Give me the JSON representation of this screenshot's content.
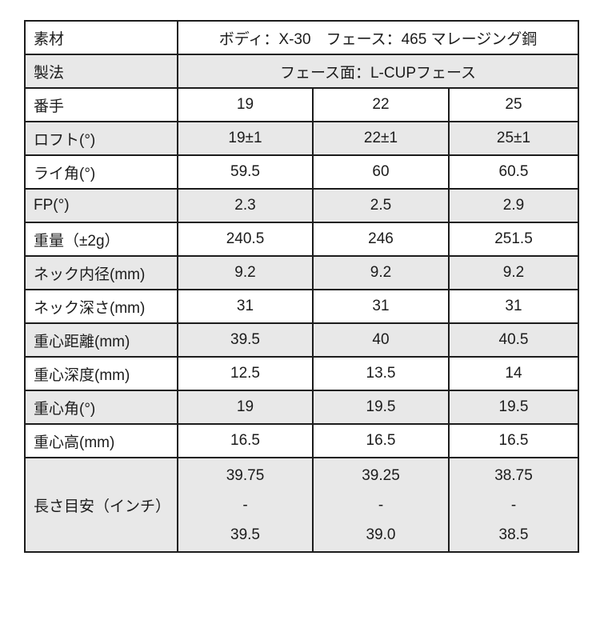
{
  "table": {
    "merged_rows": [
      {
        "label": "素材",
        "value": "ボディ：X-30　フェース：465 マレージング鋼"
      },
      {
        "label": "製法",
        "value": "フェース面：L-CUPフェース"
      }
    ],
    "spec_rows": [
      {
        "label": "番手",
        "values": [
          "19",
          "22",
          "25"
        ]
      },
      {
        "label": "ロフト(°)",
        "values": [
          "19±1",
          "22±1",
          "25±1"
        ]
      },
      {
        "label": "ライ角(°)",
        "values": [
          "59.5",
          "60",
          "60.5"
        ]
      },
      {
        "label": "FP(°)",
        "values": [
          "2.3",
          "2.5",
          "2.9"
        ]
      },
      {
        "label": "重量（±2g）",
        "values": [
          "240.5",
          "246",
          "251.5"
        ]
      },
      {
        "label": "ネック内径(mm)",
        "values": [
          "9.2",
          "9.2",
          "9.2"
        ]
      },
      {
        "label": "ネック深さ(mm)",
        "values": [
          "31",
          "31",
          "31"
        ]
      },
      {
        "label": "重心距離(mm)",
        "values": [
          "39.5",
          "40",
          "40.5"
        ]
      },
      {
        "label": "重心深度(mm)",
        "values": [
          "12.5",
          "13.5",
          "14"
        ]
      },
      {
        "label": "重心角(°)",
        "values": [
          "19",
          "19.5",
          "19.5"
        ]
      },
      {
        "label": "重心高(mm)",
        "values": [
          "16.5",
          "16.5",
          "16.5"
        ]
      }
    ],
    "length_row": {
      "label": "長さ目安（インチ）",
      "values": [
        [
          "39.75",
          "-",
          "39.5"
        ],
        [
          "39.25",
          "-",
          "39.0"
        ],
        [
          "38.75",
          "-",
          "38.5"
        ]
      ]
    }
  },
  "colors": {
    "stripe": "#e8e8e8",
    "border": "#1c1c1c",
    "text": "#1c1c1c",
    "background": "#ffffff"
  }
}
